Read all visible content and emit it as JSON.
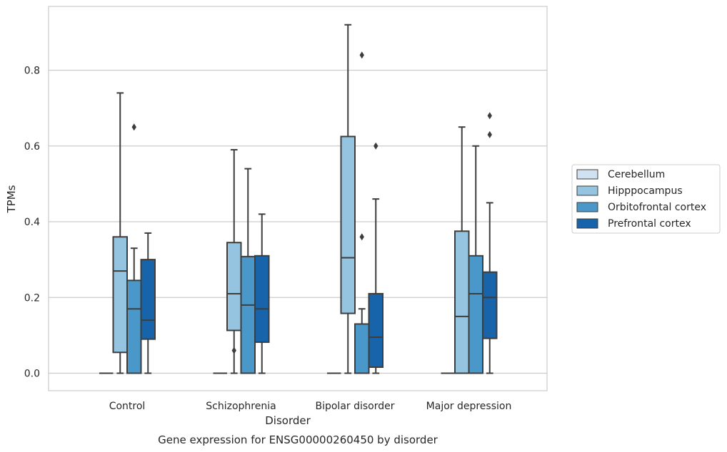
{
  "caption": "Gene expression for ENSG00000260450 by disorder",
  "chart_data": {
    "type": "box",
    "xlabel": "Disorder",
    "ylabel": "TPMs",
    "ylim": [
      -0.045,
      0.97
    ],
    "yticks": [
      "0.0",
      "0.2",
      "0.4",
      "0.6",
      "0.8"
    ],
    "grid": true,
    "legend_position": "right",
    "categories": [
      "Control",
      "Schizophrenia",
      "Bipolar disorder",
      "Major depression"
    ],
    "series": [
      {
        "name": "Cerebellum",
        "color": "#d0e1f2",
        "boxes": [
          {
            "whislo": 0,
            "q1": 0,
            "med": 0,
            "q3": 0,
            "whishi": 0,
            "fliers": []
          },
          {
            "whislo": 0,
            "q1": 0,
            "med": 0,
            "q3": 0,
            "whishi": 0,
            "fliers": []
          },
          {
            "whislo": 0,
            "q1": 0,
            "med": 0,
            "q3": 0,
            "whishi": 0,
            "fliers": []
          },
          {
            "whislo": 0,
            "q1": 0,
            "med": 0,
            "q3": 0,
            "whishi": 0,
            "fliers": []
          }
        ]
      },
      {
        "name": "Hipppocampus",
        "color": "#94c4df",
        "boxes": [
          {
            "whislo": 0,
            "q1": 0.055,
            "med": 0.27,
            "q3": 0.36,
            "whishi": 0.74,
            "fliers": []
          },
          {
            "whislo": 0,
            "q1": 0.113,
            "med": 0.21,
            "q3": 0.345,
            "whishi": 0.59,
            "fliers": [
              0.06
            ]
          },
          {
            "whislo": 0,
            "q1": 0.158,
            "med": 0.305,
            "q3": 0.625,
            "whishi": 0.92,
            "fliers": []
          },
          {
            "whislo": 0,
            "q1": 0,
            "med": 0.15,
            "q3": 0.375,
            "whishi": 0.65,
            "fliers": []
          }
        ]
      },
      {
        "name": "Orbitofrontal cortex",
        "color": "#4a98c9",
        "boxes": [
          {
            "whislo": 0,
            "q1": 0,
            "med": 0.17,
            "q3": 0.245,
            "whishi": 0.33,
            "fliers": [
              0.65
            ]
          },
          {
            "whislo": 0,
            "q1": 0,
            "med": 0.18,
            "q3": 0.308,
            "whishi": 0.54,
            "fliers": []
          },
          {
            "whislo": 0,
            "q1": 0,
            "med": 0,
            "q3": 0.13,
            "whishi": 0.17,
            "fliers": [
              0.36,
              0.84
            ]
          },
          {
            "whislo": 0,
            "q1": 0,
            "med": 0.21,
            "q3": 0.31,
            "whishi": 0.6,
            "fliers": []
          }
        ]
      },
      {
        "name": "Prefrontal cortex",
        "color": "#1764ab",
        "boxes": [
          {
            "whislo": 0,
            "q1": 0.09,
            "med": 0.14,
            "q3": 0.3,
            "whishi": 0.37,
            "fliers": []
          },
          {
            "whislo": 0,
            "q1": 0.082,
            "med": 0.17,
            "q3": 0.31,
            "whishi": 0.42,
            "fliers": []
          },
          {
            "whislo": 0,
            "q1": 0.016,
            "med": 0.095,
            "q3": 0.21,
            "whishi": 0.46,
            "fliers": [
              0.6
            ]
          },
          {
            "whislo": 0,
            "q1": 0.092,
            "med": 0.2,
            "q3": 0.267,
            "whishi": 0.45,
            "fliers": [
              0.63,
              0.68
            ]
          }
        ]
      }
    ]
  }
}
